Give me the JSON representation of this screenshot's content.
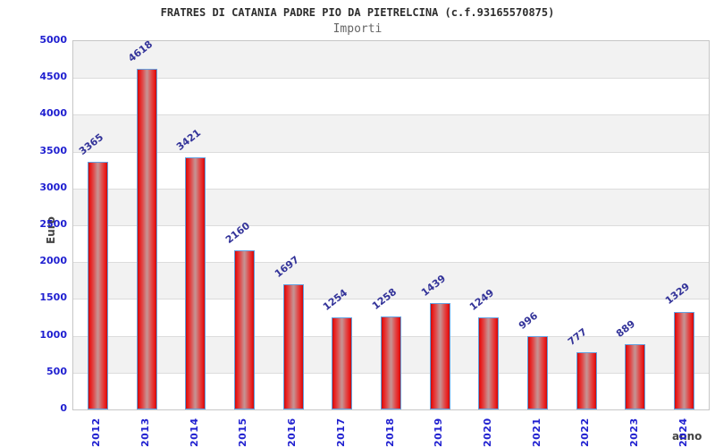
{
  "header": {
    "title": "FRATRES DI CATANIA PADRE PIO DA PIETRELCINA (c.f.93165570875)",
    "subtitle": "Importi"
  },
  "colors": {
    "tick_label_blue": "#1f1fd0",
    "value_label_navy": "#333399",
    "axis_title_gray": "#444444",
    "subtitle_gray": "#666666",
    "title_dark": "#2e2e2e",
    "band_gray": "#f2f2f2",
    "band_white": "#ffffff",
    "gridline": "#dcdcdc",
    "plot_border": "#c6c6c6",
    "bar_red": "#e91515",
    "bar_center_highlight": "#c79090",
    "bar_border_blue": "#64a1e0"
  },
  "chart_data": {
    "type": "bar",
    "title": "FRATRES DI CATANIA PADRE PIO DA PIETRELCINA (c.f.93165570875)",
    "subtitle": "Importi",
    "categories": [
      "2012",
      "2013",
      "2014",
      "2015",
      "2016",
      "2017",
      "2018",
      "2019",
      "2020",
      "2021",
      "2022",
      "2023",
      "2024"
    ],
    "values": [
      3365,
      4618,
      3421,
      2160,
      1697,
      1254,
      1258,
      1439,
      1249,
      996,
      777,
      889,
      1329
    ],
    "xlabel": "anno",
    "ylabel": "Euro",
    "ylim": [
      0,
      5000
    ],
    "ytick_step": 500,
    "yticks": [
      0,
      500,
      1000,
      1500,
      2000,
      2500,
      3000,
      3500,
      4000,
      4500,
      5000
    ],
    "grid": true,
    "legend": "none",
    "band_pattern": "alternating gray/white every 500, gray at 4500-5000"
  }
}
